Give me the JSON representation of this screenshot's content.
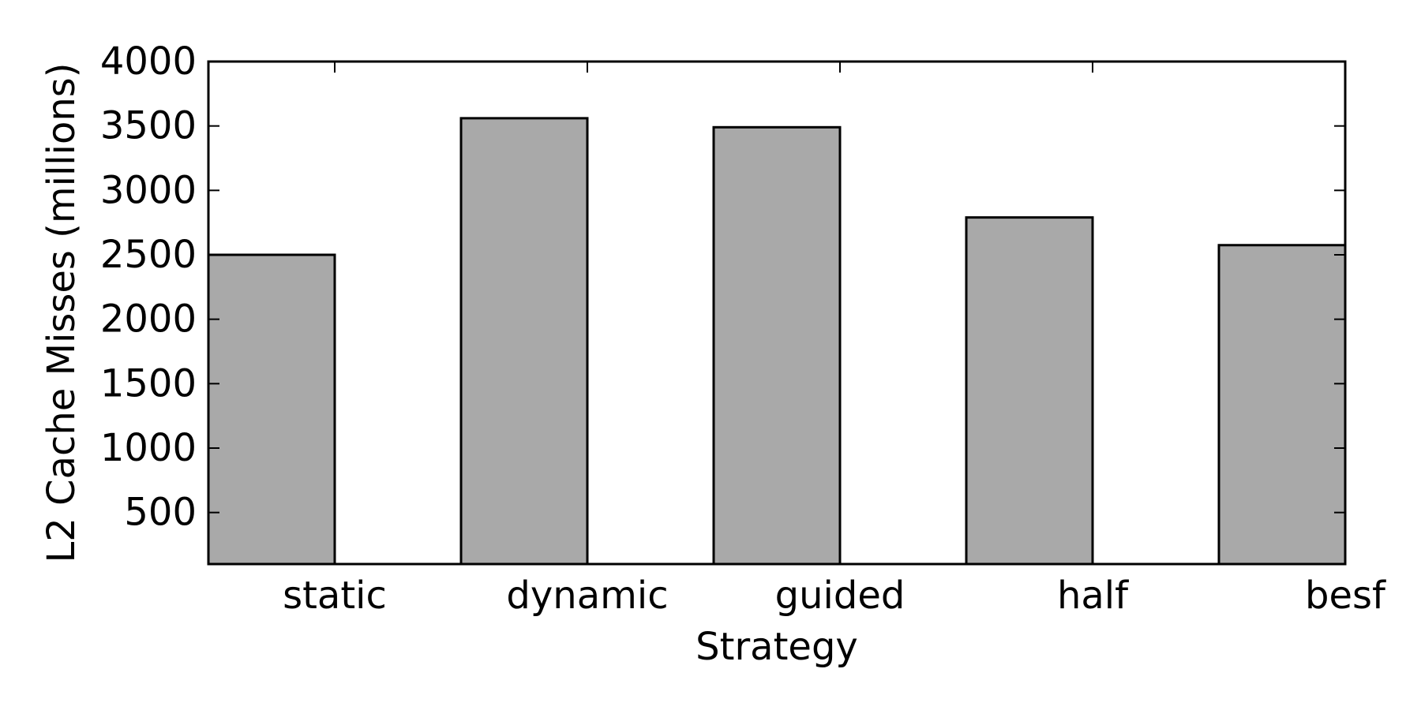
{
  "chart_data": {
    "type": "bar",
    "title": "",
    "xlabel": "Strategy",
    "ylabel": "L2 Cache Misses (millions)",
    "categories": [
      "static",
      "dynamic",
      "guided",
      "half",
      "besf"
    ],
    "values": [
      2500,
      3560,
      3490,
      2790,
      2575
    ],
    "ylim": [
      100,
      4000
    ],
    "yticks": [
      "500",
      "1000",
      "1500",
      "2000",
      "2500",
      "3000",
      "3500",
      "4000"
    ],
    "yticks_values": [
      500,
      1000,
      1500,
      2000,
      2500,
      3000,
      3500,
      4000
    ],
    "grid": false,
    "legend": "none",
    "colors": {
      "bar_fill": "#a9a9a9",
      "bar_edge": "#000000",
      "axis": "#000000"
    }
  }
}
